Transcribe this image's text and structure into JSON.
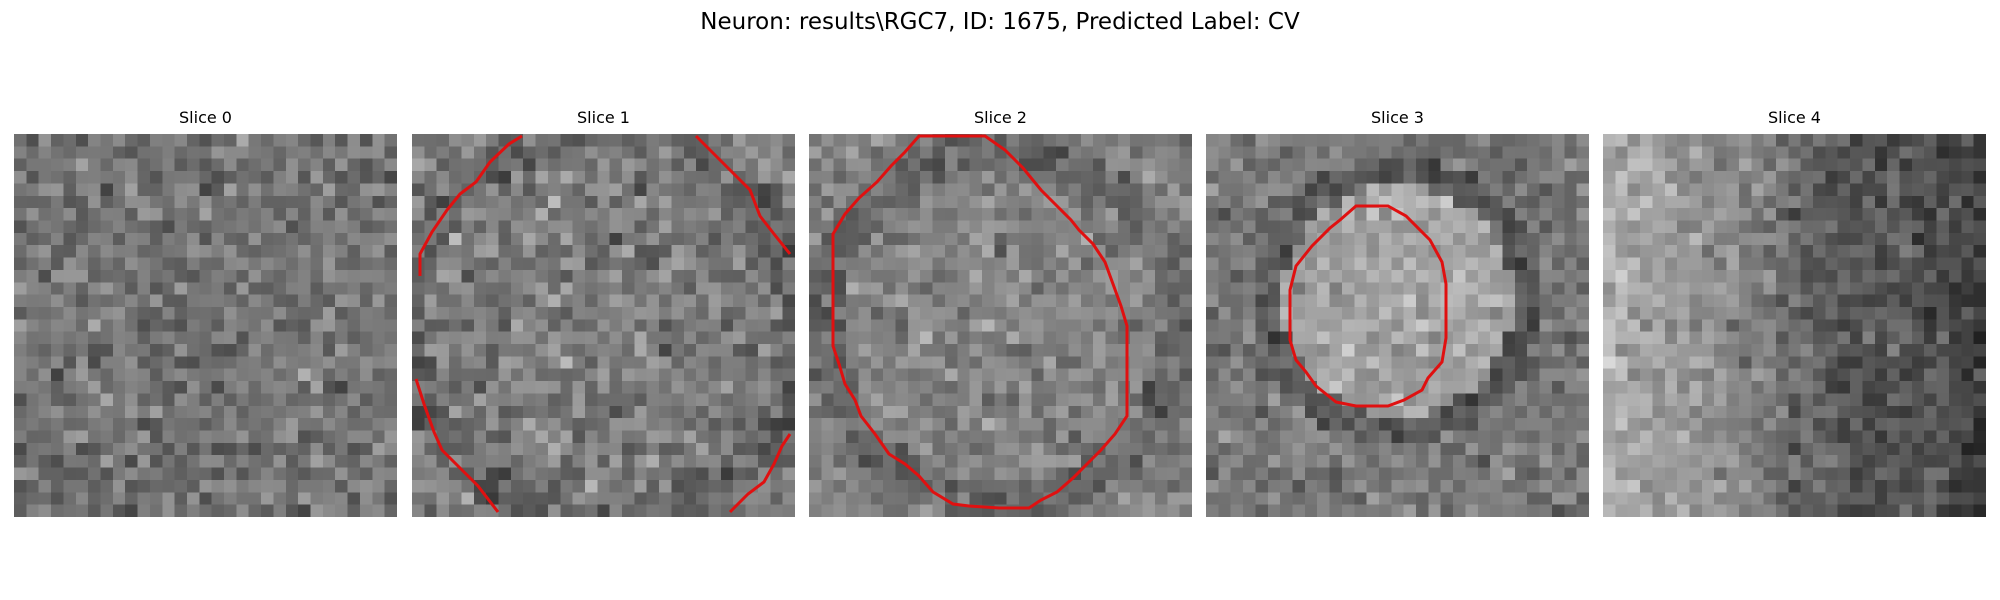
{
  "figure": {
    "title": "Neuron: results\\RGC7, ID: 1675, Predicted Label: CV"
  },
  "contour_color": "#e01010",
  "image_grid": {
    "cols": 31,
    "rows": 31
  },
  "panels": [
    {
      "title": "Slice 0",
      "has_contour": false,
      "texture": "uniform mid-gray noise"
    },
    {
      "title": "Slice 1",
      "has_contour": true,
      "texture": "noise with large partial circular outline"
    },
    {
      "title": "Slice 2",
      "has_contour": true,
      "texture": "noise with large closed circular outline"
    },
    {
      "title": "Slice 3",
      "has_contour": true,
      "texture": "noise with bright centered soma outlined"
    },
    {
      "title": "Slice 4",
      "has_contour": false,
      "texture": "bright left region, dark right region"
    }
  ]
}
